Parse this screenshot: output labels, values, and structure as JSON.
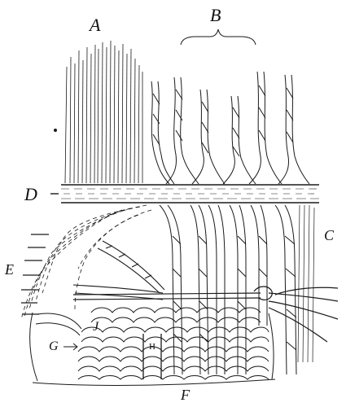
{
  "labels": {
    "a": "A",
    "b": "B",
    "c": "C",
    "d": "D",
    "e": "E",
    "f": "F",
    "g": "G",
    "h": "H",
    "j": "J"
  },
  "colors": {
    "ink": "#1a1a1a",
    "paper": "#ffffff"
  }
}
